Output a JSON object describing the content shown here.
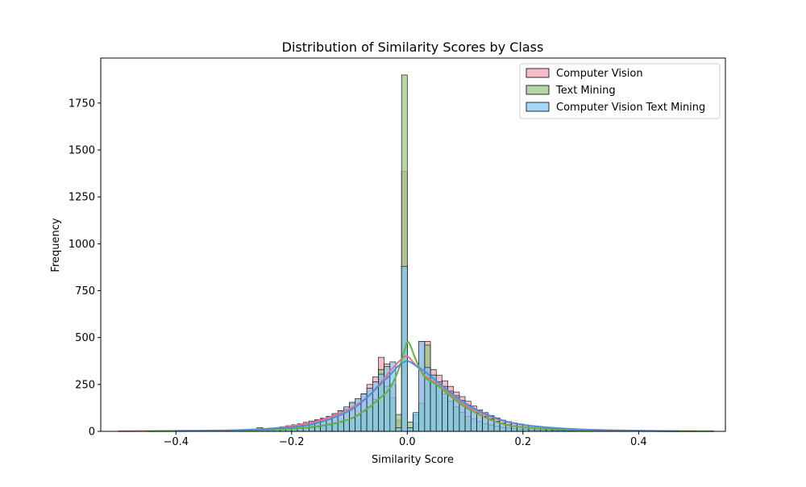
{
  "chart_data": {
    "type": "bar",
    "subtype": "histogram-with-kde",
    "title": "Distribution of Similarity Scores by Class",
    "xlabel": "Similarity Score",
    "ylabel": "Frequency",
    "xlim": [
      -0.53,
      0.55
    ],
    "ylim": [
      0,
      1990
    ],
    "xticks": [
      -0.4,
      -0.2,
      0.0,
      0.2,
      0.4
    ],
    "xtick_labels": [
      "−0.4",
      "−0.2",
      "0.0",
      "0.2",
      "0.4"
    ],
    "yticks": [
      0,
      250,
      500,
      750,
      1000,
      1250,
      1500,
      1750
    ],
    "ytick_labels": [
      "0",
      "250",
      "500",
      "750",
      "1000",
      "1250",
      "1500",
      "1750"
    ],
    "legend_position": "top-right",
    "grid": false,
    "bin_width": 0.01,
    "series": [
      {
        "name": "Computer Vision",
        "color": "#f2a3b1",
        "line_color": "#e8718a",
        "bin_centers": [
          -0.495,
          -0.485,
          -0.475,
          -0.465,
          -0.455,
          -0.445,
          -0.435,
          -0.425,
          -0.415,
          -0.405,
          -0.395,
          -0.385,
          -0.375,
          -0.365,
          -0.355,
          -0.345,
          -0.335,
          -0.325,
          -0.315,
          -0.305,
          -0.295,
          -0.285,
          -0.275,
          -0.265,
          -0.255,
          -0.245,
          -0.235,
          -0.225,
          -0.215,
          -0.205,
          -0.195,
          -0.185,
          -0.175,
          -0.165,
          -0.155,
          -0.145,
          -0.135,
          -0.125,
          -0.115,
          -0.105,
          -0.095,
          -0.085,
          -0.075,
          -0.065,
          -0.055,
          -0.045,
          -0.035,
          -0.025,
          -0.015,
          -0.005,
          0.005,
          0.015,
          0.025,
          0.035,
          0.045,
          0.055,
          0.065,
          0.075,
          0.085,
          0.095,
          0.105,
          0.115,
          0.125,
          0.135,
          0.145,
          0.155,
          0.165,
          0.175,
          0.185,
          0.195,
          0.205,
          0.215,
          0.225,
          0.235,
          0.245,
          0.255,
          0.265,
          0.275,
          0.285,
          0.295,
          0.305,
          0.315,
          0.325,
          0.335,
          0.345,
          0.355,
          0.365,
          0.375,
          0.385,
          0.395,
          0.405,
          0.415,
          0.425,
          0.435,
          0.445,
          0.455,
          0.465,
          0.475,
          0.485,
          0.495
        ],
        "values": [
          1,
          1,
          1,
          1,
          1,
          1,
          1,
          1,
          2,
          2,
          2,
          2,
          3,
          3,
          3,
          4,
          4,
          5,
          6,
          7,
          8,
          9,
          10,
          12,
          20,
          15,
          16,
          20,
          25,
          30,
          35,
          40,
          48,
          55,
          62,
          70,
          80,
          90,
          110,
          120,
          150,
          175,
          200,
          250,
          290,
          395,
          360,
          250,
          60,
          1385,
          20,
          40,
          480,
          480,
          330,
          300,
          270,
          240,
          210,
          185,
          160,
          135,
          115,
          100,
          85,
          72,
          60,
          52,
          45,
          40,
          35,
          30,
          26,
          23,
          20,
          18,
          16,
          14,
          12,
          11,
          10,
          9,
          8,
          7,
          6,
          6,
          5,
          5,
          4,
          4,
          3,
          3,
          3,
          2,
          2,
          2,
          2,
          1,
          1,
          1
        ],
        "kde_x": [
          -0.5,
          -0.4,
          -0.3,
          -0.25,
          -0.2,
          -0.15,
          -0.1,
          -0.07,
          -0.05,
          -0.03,
          -0.01,
          0.0,
          0.01,
          0.03,
          0.05,
          0.07,
          0.1,
          0.15,
          0.2,
          0.25,
          0.3,
          0.4,
          0.5
        ],
        "kde_y": [
          1,
          3,
          6,
          12,
          28,
          60,
          120,
          180,
          245,
          320,
          385,
          400,
          370,
          300,
          255,
          210,
          140,
          70,
          35,
          18,
          10,
          4,
          1
        ]
      },
      {
        "name": "Text Mining",
        "color": "#93c47d",
        "line_color": "#5fb343",
        "bin_centers": [
          -0.435,
          -0.425,
          -0.415,
          -0.405,
          -0.395,
          -0.385,
          -0.375,
          -0.365,
          -0.355,
          -0.345,
          -0.335,
          -0.325,
          -0.315,
          -0.305,
          -0.295,
          -0.285,
          -0.275,
          -0.265,
          -0.255,
          -0.245,
          -0.235,
          -0.225,
          -0.215,
          -0.205,
          -0.195,
          -0.185,
          -0.175,
          -0.165,
          -0.155,
          -0.145,
          -0.135,
          -0.125,
          -0.115,
          -0.105,
          -0.095,
          -0.085,
          -0.075,
          -0.065,
          -0.055,
          -0.045,
          -0.035,
          -0.025,
          -0.015,
          -0.005,
          0.005,
          0.015,
          0.025,
          0.035,
          0.045,
          0.055,
          0.065,
          0.075,
          0.085,
          0.095,
          0.105,
          0.115,
          0.125,
          0.135,
          0.145,
          0.155,
          0.165,
          0.175,
          0.185,
          0.195,
          0.205,
          0.215,
          0.225,
          0.235,
          0.245,
          0.255,
          0.265,
          0.275,
          0.285,
          0.295,
          0.305,
          0.315,
          0.325,
          0.335,
          0.345,
          0.355,
          0.365,
          0.375,
          0.385,
          0.395,
          0.405,
          0.415,
          0.425,
          0.435,
          0.445,
          0.455,
          0.465,
          0.475,
          0.485,
          0.495,
          0.505,
          0.515,
          0.525
        ],
        "values": [
          1,
          1,
          1,
          1,
          1,
          1,
          1,
          1,
          1,
          2,
          2,
          2,
          2,
          3,
          3,
          3,
          4,
          4,
          5,
          6,
          7,
          8,
          9,
          10,
          12,
          14,
          17,
          20,
          24,
          28,
          34,
          40,
          48,
          58,
          70,
          85,
          105,
          130,
          170,
          330,
          240,
          180,
          90,
          1900,
          50,
          90,
          150,
          460,
          300,
          250,
          200,
          160,
          130,
          100,
          80,
          65,
          52,
          42,
          34,
          28,
          22,
          18,
          15,
          12,
          10,
          8,
          7,
          6,
          5,
          4,
          4,
          3,
          3,
          3,
          2,
          2,
          2,
          2,
          1,
          1,
          1,
          1,
          1,
          1,
          1,
          1,
          1,
          1,
          1,
          1,
          1,
          1,
          1,
          1,
          1,
          1,
          1
        ],
        "kde_x": [
          -0.45,
          -0.3,
          -0.2,
          -0.15,
          -0.1,
          -0.07,
          -0.05,
          -0.03,
          -0.015,
          -0.005,
          0.0,
          0.005,
          0.015,
          0.03,
          0.05,
          0.07,
          0.1,
          0.15,
          0.2,
          0.3,
          0.4,
          0.53
        ],
        "kde_y": [
          1,
          4,
          14,
          30,
          65,
          120,
          170,
          230,
          330,
          430,
          475,
          460,
          380,
          290,
          250,
          200,
          130,
          55,
          22,
          6,
          2,
          1
        ]
      },
      {
        "name": "Computer Vision Text Mining",
        "color": "#7fc7f5",
        "line_color": "#4a90d9",
        "bin_centers": [
          -0.405,
          -0.395,
          -0.385,
          -0.375,
          -0.365,
          -0.355,
          -0.345,
          -0.335,
          -0.325,
          -0.315,
          -0.305,
          -0.295,
          -0.285,
          -0.275,
          -0.265,
          -0.255,
          -0.245,
          -0.235,
          -0.225,
          -0.215,
          -0.205,
          -0.195,
          -0.185,
          -0.175,
          -0.165,
          -0.155,
          -0.145,
          -0.135,
          -0.125,
          -0.115,
          -0.105,
          -0.095,
          -0.085,
          -0.075,
          -0.065,
          -0.055,
          -0.045,
          -0.035,
          -0.025,
          -0.015,
          -0.005,
          0.005,
          0.015,
          0.025,
          0.035,
          0.045,
          0.055,
          0.065,
          0.075,
          0.085,
          0.095,
          0.105,
          0.115,
          0.125,
          0.135,
          0.145,
          0.155,
          0.165,
          0.175,
          0.185,
          0.195,
          0.205,
          0.215,
          0.225,
          0.235,
          0.245,
          0.255,
          0.265,
          0.275,
          0.285,
          0.295,
          0.305,
          0.315,
          0.325,
          0.335,
          0.345,
          0.355,
          0.365,
          0.375,
          0.385,
          0.395,
          0.405,
          0.415,
          0.425,
          0.435,
          0.445,
          0.455,
          0.465,
          0.475
        ],
        "values": [
          1,
          1,
          1,
          1,
          2,
          2,
          2,
          3,
          3,
          4,
          4,
          5,
          6,
          7,
          8,
          9,
          10,
          12,
          15,
          18,
          22,
          27,
          33,
          40,
          48,
          58,
          68,
          80,
          95,
          110,
          130,
          155,
          175,
          200,
          230,
          265,
          305,
          345,
          370,
          20,
          880,
          20,
          100,
          480,
          340,
          300,
          265,
          240,
          215,
          190,
          165,
          140,
          118,
          98,
          80,
          66,
          54,
          44,
          36,
          30,
          25,
          20,
          17,
          14,
          12,
          10,
          8,
          7,
          6,
          5,
          4,
          4,
          3,
          3,
          3,
          2,
          2,
          2,
          2,
          1,
          1,
          1,
          1,
          1,
          1,
          1,
          1,
          1,
          1
        ],
        "kde_x": [
          -0.4,
          -0.3,
          -0.2,
          -0.15,
          -0.1,
          -0.07,
          -0.05,
          -0.03,
          -0.015,
          0.0,
          0.015,
          0.03,
          0.05,
          0.07,
          0.1,
          0.15,
          0.2,
          0.3,
          0.4,
          0.47
        ],
        "kde_y": [
          2,
          6,
          22,
          50,
          110,
          180,
          240,
          300,
          350,
          375,
          350,
          320,
          270,
          220,
          150,
          75,
          35,
          10,
          3,
          1
        ]
      }
    ]
  }
}
